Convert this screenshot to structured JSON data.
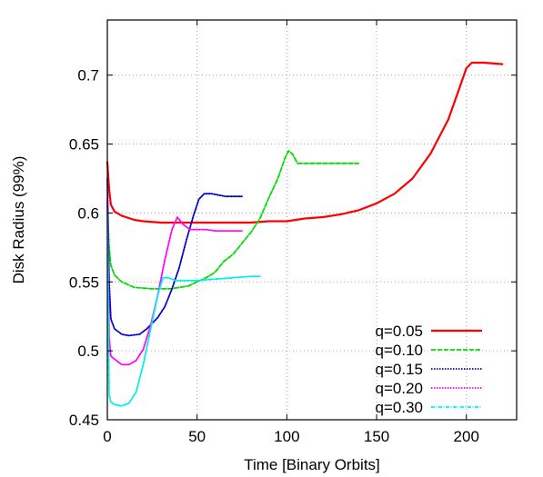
{
  "chart_data": {
    "type": "line",
    "title": "",
    "xlabel": "Time [Binary Orbits]",
    "ylabel": "Disk Radius (99%)",
    "xlim": [
      0,
      228
    ],
    "ylim": [
      0.45,
      0.74
    ],
    "xticks": [
      0,
      50,
      100,
      150,
      200
    ],
    "xtick_labels": [
      "0",
      "50",
      "100",
      "150",
      "200"
    ],
    "yticks": [
      0.45,
      0.5,
      0.55,
      0.6,
      0.65,
      0.7
    ],
    "ytick_labels": [
      "0.45",
      "0.5",
      "0.55",
      "0.6",
      "0.65",
      "0.7"
    ],
    "grid": true,
    "legend_position": "bottom-right",
    "series": [
      {
        "name": "q=0.05",
        "color": "#ff0000",
        "dash": "solid",
        "points": [
          [
            0,
            0.637
          ],
          [
            1,
            0.617
          ],
          [
            2,
            0.606
          ],
          [
            4,
            0.601
          ],
          [
            8,
            0.598
          ],
          [
            15,
            0.595
          ],
          [
            20,
            0.594
          ],
          [
            30,
            0.593
          ],
          [
            40,
            0.593
          ],
          [
            50,
            0.593
          ],
          [
            60,
            0.593
          ],
          [
            70,
            0.593
          ],
          [
            80,
            0.593
          ],
          [
            90,
            0.594
          ],
          [
            100,
            0.594
          ],
          [
            110,
            0.596
          ],
          [
            120,
            0.597
          ],
          [
            130,
            0.599
          ],
          [
            140,
            0.602
          ],
          [
            150,
            0.607
          ],
          [
            160,
            0.614
          ],
          [
            170,
            0.625
          ],
          [
            180,
            0.643
          ],
          [
            190,
            0.668
          ],
          [
            196,
            0.69
          ],
          [
            200,
            0.705
          ],
          [
            203,
            0.709
          ],
          [
            210,
            0.709
          ],
          [
            220,
            0.708
          ]
        ]
      },
      {
        "name": "q=0.10",
        "color": "#00dd00",
        "dash": "dashed",
        "points": [
          [
            0,
            0.605
          ],
          [
            1,
            0.575
          ],
          [
            2,
            0.562
          ],
          [
            4,
            0.555
          ],
          [
            8,
            0.55
          ],
          [
            15,
            0.546
          ],
          [
            25,
            0.545
          ],
          [
            35,
            0.545
          ],
          [
            45,
            0.547
          ],
          [
            55,
            0.553
          ],
          [
            60,
            0.557
          ],
          [
            65,
            0.565
          ],
          [
            70,
            0.57
          ],
          [
            75,
            0.578
          ],
          [
            80,
            0.586
          ],
          [
            85,
            0.596
          ],
          [
            90,
            0.611
          ],
          [
            95,
            0.625
          ],
          [
            99,
            0.64
          ],
          [
            101,
            0.645
          ],
          [
            103,
            0.643
          ],
          [
            106,
            0.636
          ],
          [
            110,
            0.636
          ],
          [
            120,
            0.636
          ],
          [
            130,
            0.636
          ],
          [
            140,
            0.636
          ]
        ]
      },
      {
        "name": "q=0.15",
        "color": "#0000cc",
        "dash": "dotted",
        "points": [
          [
            0,
            0.625
          ],
          [
            1,
            0.55
          ],
          [
            2,
            0.523
          ],
          [
            4,
            0.516
          ],
          [
            8,
            0.512
          ],
          [
            12,
            0.511
          ],
          [
            18,
            0.512
          ],
          [
            22,
            0.516
          ],
          [
            28,
            0.524
          ],
          [
            32,
            0.532
          ],
          [
            36,
            0.545
          ],
          [
            40,
            0.56
          ],
          [
            44,
            0.58
          ],
          [
            48,
            0.598
          ],
          [
            51,
            0.61
          ],
          [
            54,
            0.614
          ],
          [
            58,
            0.614
          ],
          [
            62,
            0.613
          ],
          [
            66,
            0.612
          ],
          [
            70,
            0.612
          ],
          [
            75,
            0.612
          ]
        ]
      },
      {
        "name": "q=0.20",
        "color": "#ff00ff",
        "dash": "dotted",
        "points": [
          [
            0,
            0.61
          ],
          [
            1,
            0.51
          ],
          [
            2,
            0.496
          ],
          [
            4,
            0.494
          ],
          [
            8,
            0.49
          ],
          [
            12,
            0.49
          ],
          [
            16,
            0.493
          ],
          [
            20,
            0.501
          ],
          [
            24,
            0.518
          ],
          [
            28,
            0.54
          ],
          [
            32,
            0.566
          ],
          [
            36,
            0.588
          ],
          [
            39,
            0.597
          ],
          [
            42,
            0.592
          ],
          [
            46,
            0.588
          ],
          [
            50,
            0.588
          ],
          [
            55,
            0.588
          ],
          [
            60,
            0.587
          ],
          [
            65,
            0.587
          ],
          [
            70,
            0.587
          ],
          [
            75,
            0.587
          ]
        ]
      },
      {
        "name": "q=0.30",
        "color": "#00eeee",
        "dash": "dashdot",
        "points": [
          [
            0,
            0.6
          ],
          [
            1,
            0.468
          ],
          [
            2,
            0.463
          ],
          [
            4,
            0.461
          ],
          [
            8,
            0.46
          ],
          [
            12,
            0.462
          ],
          [
            16,
            0.47
          ],
          [
            20,
            0.49
          ],
          [
            24,
            0.515
          ],
          [
            28,
            0.54
          ],
          [
            31,
            0.553
          ],
          [
            34,
            0.553
          ],
          [
            38,
            0.551
          ],
          [
            42,
            0.551
          ],
          [
            50,
            0.551
          ],
          [
            60,
            0.552
          ],
          [
            70,
            0.553
          ],
          [
            80,
            0.554
          ],
          [
            85,
            0.554
          ]
        ]
      }
    ]
  }
}
